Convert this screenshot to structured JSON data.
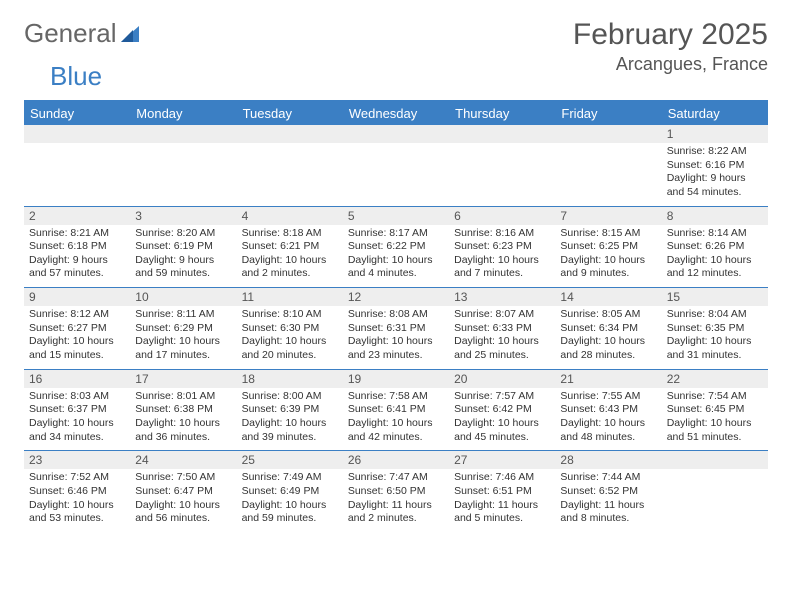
{
  "brand": {
    "part1": "General",
    "part2": "Blue"
  },
  "title": "February 2025",
  "location": "Arcangues, France",
  "colors": {
    "header_bg": "#3b7fc4",
    "header_text": "#ffffff",
    "daynum_bg": "#eeeeee",
    "border": "#3b7fc4",
    "text": "#333333",
    "title_text": "#555555"
  },
  "weekdays": [
    "Sunday",
    "Monday",
    "Tuesday",
    "Wednesday",
    "Thursday",
    "Friday",
    "Saturday"
  ],
  "weeks": [
    [
      {
        "n": "",
        "sr": "",
        "ss": "",
        "dl": ""
      },
      {
        "n": "",
        "sr": "",
        "ss": "",
        "dl": ""
      },
      {
        "n": "",
        "sr": "",
        "ss": "",
        "dl": ""
      },
      {
        "n": "",
        "sr": "",
        "ss": "",
        "dl": ""
      },
      {
        "n": "",
        "sr": "",
        "ss": "",
        "dl": ""
      },
      {
        "n": "",
        "sr": "",
        "ss": "",
        "dl": ""
      },
      {
        "n": "1",
        "sr": "Sunrise: 8:22 AM",
        "ss": "Sunset: 6:16 PM",
        "dl": "Daylight: 9 hours and 54 minutes."
      }
    ],
    [
      {
        "n": "2",
        "sr": "Sunrise: 8:21 AM",
        "ss": "Sunset: 6:18 PM",
        "dl": "Daylight: 9 hours and 57 minutes."
      },
      {
        "n": "3",
        "sr": "Sunrise: 8:20 AM",
        "ss": "Sunset: 6:19 PM",
        "dl": "Daylight: 9 hours and 59 minutes."
      },
      {
        "n": "4",
        "sr": "Sunrise: 8:18 AM",
        "ss": "Sunset: 6:21 PM",
        "dl": "Daylight: 10 hours and 2 minutes."
      },
      {
        "n": "5",
        "sr": "Sunrise: 8:17 AM",
        "ss": "Sunset: 6:22 PM",
        "dl": "Daylight: 10 hours and 4 minutes."
      },
      {
        "n": "6",
        "sr": "Sunrise: 8:16 AM",
        "ss": "Sunset: 6:23 PM",
        "dl": "Daylight: 10 hours and 7 minutes."
      },
      {
        "n": "7",
        "sr": "Sunrise: 8:15 AM",
        "ss": "Sunset: 6:25 PM",
        "dl": "Daylight: 10 hours and 9 minutes."
      },
      {
        "n": "8",
        "sr": "Sunrise: 8:14 AM",
        "ss": "Sunset: 6:26 PM",
        "dl": "Daylight: 10 hours and 12 minutes."
      }
    ],
    [
      {
        "n": "9",
        "sr": "Sunrise: 8:12 AM",
        "ss": "Sunset: 6:27 PM",
        "dl": "Daylight: 10 hours and 15 minutes."
      },
      {
        "n": "10",
        "sr": "Sunrise: 8:11 AM",
        "ss": "Sunset: 6:29 PM",
        "dl": "Daylight: 10 hours and 17 minutes."
      },
      {
        "n": "11",
        "sr": "Sunrise: 8:10 AM",
        "ss": "Sunset: 6:30 PM",
        "dl": "Daylight: 10 hours and 20 minutes."
      },
      {
        "n": "12",
        "sr": "Sunrise: 8:08 AM",
        "ss": "Sunset: 6:31 PM",
        "dl": "Daylight: 10 hours and 23 minutes."
      },
      {
        "n": "13",
        "sr": "Sunrise: 8:07 AM",
        "ss": "Sunset: 6:33 PM",
        "dl": "Daylight: 10 hours and 25 minutes."
      },
      {
        "n": "14",
        "sr": "Sunrise: 8:05 AM",
        "ss": "Sunset: 6:34 PM",
        "dl": "Daylight: 10 hours and 28 minutes."
      },
      {
        "n": "15",
        "sr": "Sunrise: 8:04 AM",
        "ss": "Sunset: 6:35 PM",
        "dl": "Daylight: 10 hours and 31 minutes."
      }
    ],
    [
      {
        "n": "16",
        "sr": "Sunrise: 8:03 AM",
        "ss": "Sunset: 6:37 PM",
        "dl": "Daylight: 10 hours and 34 minutes."
      },
      {
        "n": "17",
        "sr": "Sunrise: 8:01 AM",
        "ss": "Sunset: 6:38 PM",
        "dl": "Daylight: 10 hours and 36 minutes."
      },
      {
        "n": "18",
        "sr": "Sunrise: 8:00 AM",
        "ss": "Sunset: 6:39 PM",
        "dl": "Daylight: 10 hours and 39 minutes."
      },
      {
        "n": "19",
        "sr": "Sunrise: 7:58 AM",
        "ss": "Sunset: 6:41 PM",
        "dl": "Daylight: 10 hours and 42 minutes."
      },
      {
        "n": "20",
        "sr": "Sunrise: 7:57 AM",
        "ss": "Sunset: 6:42 PM",
        "dl": "Daylight: 10 hours and 45 minutes."
      },
      {
        "n": "21",
        "sr": "Sunrise: 7:55 AM",
        "ss": "Sunset: 6:43 PM",
        "dl": "Daylight: 10 hours and 48 minutes."
      },
      {
        "n": "22",
        "sr": "Sunrise: 7:54 AM",
        "ss": "Sunset: 6:45 PM",
        "dl": "Daylight: 10 hours and 51 minutes."
      }
    ],
    [
      {
        "n": "23",
        "sr": "Sunrise: 7:52 AM",
        "ss": "Sunset: 6:46 PM",
        "dl": "Daylight: 10 hours and 53 minutes."
      },
      {
        "n": "24",
        "sr": "Sunrise: 7:50 AM",
        "ss": "Sunset: 6:47 PM",
        "dl": "Daylight: 10 hours and 56 minutes."
      },
      {
        "n": "25",
        "sr": "Sunrise: 7:49 AM",
        "ss": "Sunset: 6:49 PM",
        "dl": "Daylight: 10 hours and 59 minutes."
      },
      {
        "n": "26",
        "sr": "Sunrise: 7:47 AM",
        "ss": "Sunset: 6:50 PM",
        "dl": "Daylight: 11 hours and 2 minutes."
      },
      {
        "n": "27",
        "sr": "Sunrise: 7:46 AM",
        "ss": "Sunset: 6:51 PM",
        "dl": "Daylight: 11 hours and 5 minutes."
      },
      {
        "n": "28",
        "sr": "Sunrise: 7:44 AM",
        "ss": "Sunset: 6:52 PM",
        "dl": "Daylight: 11 hours and 8 minutes."
      },
      {
        "n": "",
        "sr": "",
        "ss": "",
        "dl": ""
      }
    ]
  ]
}
